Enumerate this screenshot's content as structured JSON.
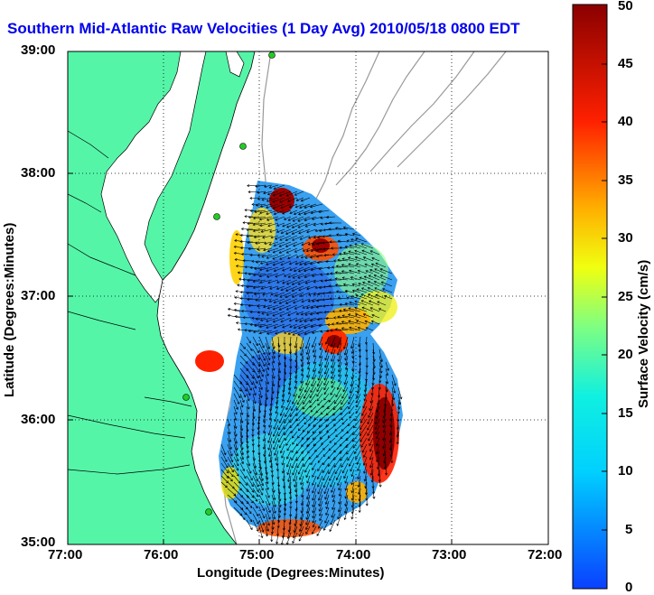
{
  "title": "Southern Mid-Atlantic Raw Velocities (1 Day Avg) 2010/05/18 0800 EDT",
  "xlabel": "Longitude (Degrees:Minutes)",
  "ylabel": "Latitude (Degrees:Minutes)",
  "x_ticks": [
    "77:00",
    "76:00",
    "75:00",
    "74:00",
    "73:00",
    "72:00"
  ],
  "y_ticks": [
    "39:00",
    "38:00",
    "37:00",
    "36:00",
    "35:00"
  ],
  "colorbar": {
    "label": "Surface Velocity (cm/s)",
    "min": 0,
    "max": 50,
    "ticks": [
      "0",
      "5",
      "10",
      "15",
      "20",
      "25",
      "30",
      "35",
      "40",
      "45",
      "50"
    ]
  },
  "map_extent": {
    "lon_range": [
      -77,
      -72
    ],
    "lat_range": [
      35,
      39
    ]
  },
  "colors": {
    "land": "#55f5a8",
    "title": "#0000ee",
    "site_marker": "#22cc22",
    "bathymetry": "#999999",
    "vectors": "#000000"
  }
}
